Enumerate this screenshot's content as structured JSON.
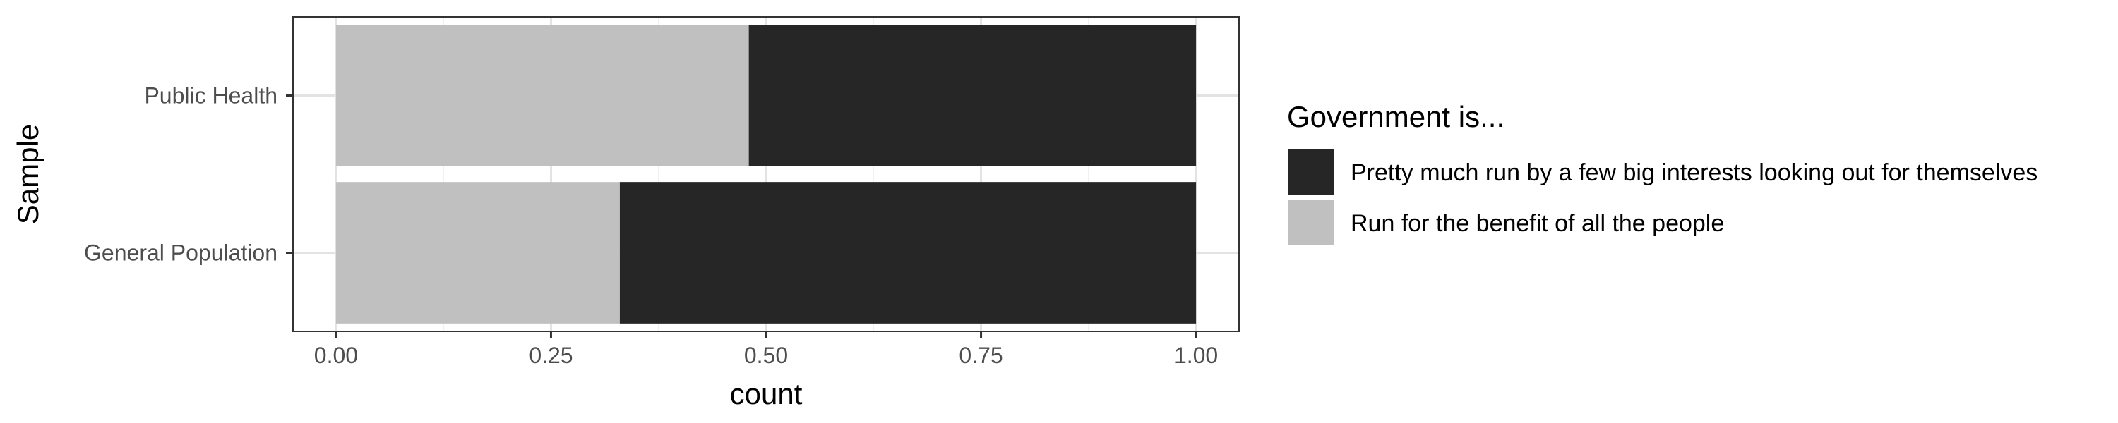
{
  "chart_data": {
    "type": "bar",
    "orientation": "horizontal",
    "stacked": true,
    "position": "fill",
    "categories": [
      "Public Health",
      "General Population"
    ],
    "series": [
      {
        "name": "Run for the benefit of all the people",
        "color": "#c0c0c0",
        "values": [
          0.48,
          0.33
        ]
      },
      {
        "name": "Pretty much run by a few big interests looking out for themselves",
        "color": "#262626",
        "values": [
          0.52,
          0.67
        ]
      }
    ],
    "xlabel": "count",
    "ylabel": "Sample",
    "xlim": [
      -0.05,
      1.05
    ],
    "xticks": [
      0,
      0.25,
      0.5,
      0.75,
      1
    ],
    "xtick_labels": [
      "0.00",
      "0.25",
      "0.50",
      "0.75",
      "1.00"
    ],
    "grid": true,
    "legend": {
      "title": "Government is...",
      "placement": "right",
      "order": [
        "Pretty much run by a few big interests looking out for themselves",
        "Run for the benefit of all the people"
      ]
    }
  }
}
